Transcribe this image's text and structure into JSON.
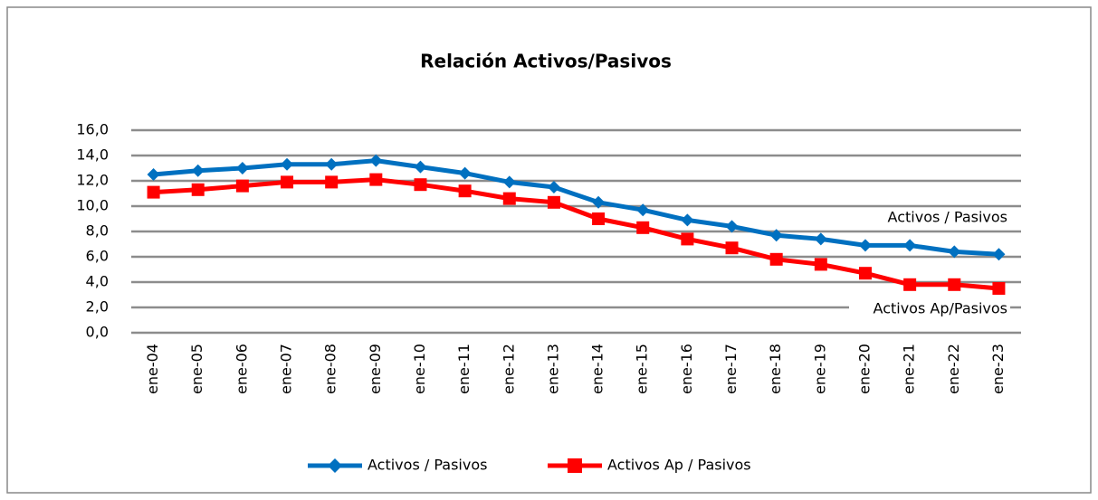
{
  "chart_data": {
    "type": "line",
    "title": "Relación Activos/Pasivos",
    "categories": [
      "ene-04",
      "ene-05",
      "ene-06",
      "ene-07",
      "ene-08",
      "ene-09",
      "ene-10",
      "ene-11",
      "ene-12",
      "ene-13",
      "ene-14",
      "ene-15",
      "ene-16",
      "ene-17",
      "ene-18",
      "ene-19",
      "ene-20",
      "ene-21",
      "ene-22",
      "ene-23"
    ],
    "series": [
      {
        "name": "Activos / Pasivos",
        "color": "#0070c0",
        "marker": "diamond",
        "values": [
          12.5,
          12.8,
          13.0,
          13.3,
          13.3,
          13.6,
          13.1,
          12.6,
          11.9,
          11.5,
          10.3,
          9.7,
          8.9,
          8.4,
          7.7,
          7.4,
          6.9,
          6.9,
          6.4,
          6.2
        ]
      },
      {
        "name": "Activos Ap / Pasivos",
        "color": "#ff0000",
        "marker": "square",
        "values": [
          11.1,
          11.3,
          11.6,
          11.9,
          11.9,
          12.1,
          11.7,
          11.2,
          10.6,
          10.3,
          9.0,
          8.3,
          7.4,
          6.7,
          5.8,
          5.4,
          4.7,
          3.8,
          3.8,
          3.5
        ]
      }
    ],
    "ylim": [
      0,
      16
    ],
    "yticks": [
      {
        "value": 0,
        "label": "0,0"
      },
      {
        "value": 2,
        "label": "2,0"
      },
      {
        "value": 4,
        "label": "4,0"
      },
      {
        "value": 6,
        "label": "6,0"
      },
      {
        "value": 8,
        "label": "8,0"
      },
      {
        "value": 10,
        "label": "10,0"
      },
      {
        "value": 12,
        "label": "12,0"
      },
      {
        "value": 14,
        "label": "14,0"
      },
      {
        "value": 16,
        "label": "16,0"
      }
    ],
    "grid": true,
    "legend": "bottom",
    "annotations": [
      "Activos / Pasivos",
      "Activos Ap/Pasivos"
    ]
  }
}
